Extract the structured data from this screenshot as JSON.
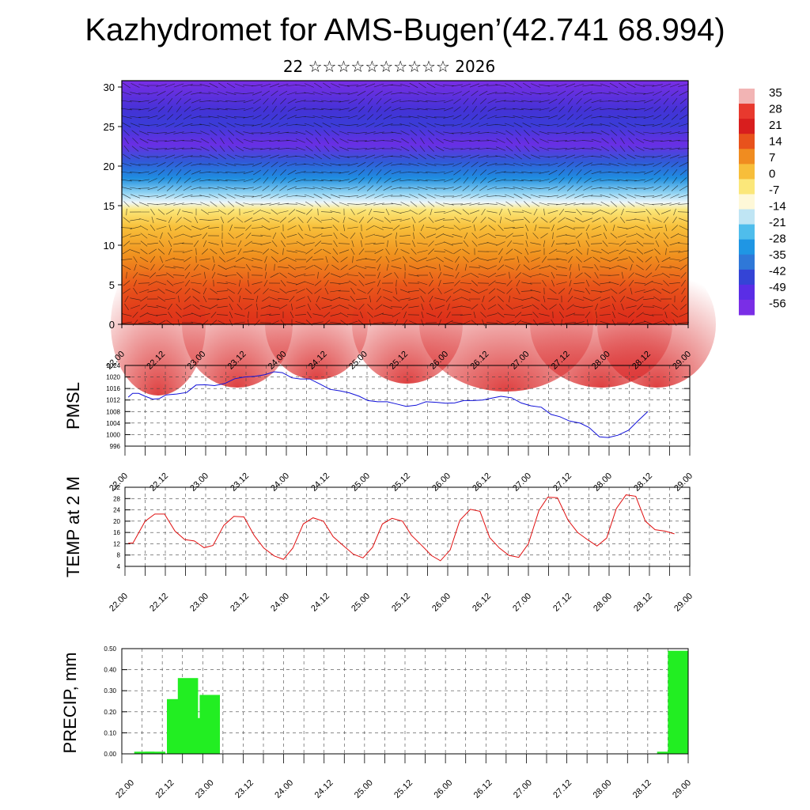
{
  "header": {
    "title": "Kazhydromet for AMS-Bugen’(42.741 68.994)",
    "subtitle": "22 ☆☆☆☆☆☆☆☆☆☆ 2026"
  },
  "colorbar": {
    "labels": [
      "35",
      "28",
      "21",
      "14",
      "7",
      "0",
      "-7",
      "-14",
      "-21",
      "-28",
      "-35",
      "-42",
      "-49",
      "-56"
    ],
    "colors": [
      "#f2b4b4",
      "#e8392e",
      "#d81e1e",
      "#e8521c",
      "#f08c20",
      "#f7be3a",
      "#fbe77a",
      "#fef8d8",
      "#bfe5f4",
      "#4fbdec",
      "#1f96e4",
      "#2f78d8",
      "#3444d6",
      "#5a2de6",
      "#7a2ee6"
    ]
  },
  "chart_data": [
    {
      "type": "heatmap",
      "name": "vertical-section",
      "title": "",
      "ylabel": "",
      "ylim": [
        0,
        30
      ],
      "yticks": [
        "0",
        "5",
        "10",
        "15",
        "20",
        "25",
        "30"
      ],
      "xticks": [
        "22.00",
        "22.12",
        "23.00",
        "23.12",
        "24.00",
        "24.12",
        "25.00",
        "25.12",
        "26.00",
        "26.12",
        "27.00",
        "27.12",
        "28.00",
        "28.12",
        "29.00"
      ]
    },
    {
      "type": "line",
      "name": "pmsl",
      "ylabel": "PMSL",
      "ylim": [
        996,
        1024
      ],
      "yticks": [
        "996",
        "1000",
        "1004",
        "1008",
        "1012",
        "1016",
        "1020",
        "1024"
      ],
      "xticks": [
        "22.00",
        "22.12",
        "23.00",
        "23.12",
        "24.00",
        "24.12",
        "25.00",
        "25.12",
        "26.00",
        "26.12",
        "27.00",
        "27.12",
        "28.00",
        "28.12",
        "29.00"
      ],
      "color": "#1010d8",
      "values": [
        1013,
        1014.3,
        1014.3,
        1013.3,
        1012.3,
        1012.5,
        1013.8,
        1014.1,
        1014.6,
        1017.2,
        1017.3,
        1017,
        1017.7,
        1019.4,
        1020,
        1020.2,
        1020.8,
        1021.8,
        1021.5,
        1019.7,
        1019.3,
        1019.3,
        1017.5,
        1015.7,
        1015.2,
        1014.5,
        1013.3,
        1011.8,
        1011.4,
        1011.4,
        1010.6,
        1009.8,
        1010.2,
        1011.4,
        1011.2,
        1010.9,
        1011,
        1011.8,
        1011.8,
        1012,
        1012.7,
        1013.3,
        1012.8,
        1011,
        1010,
        1009.5,
        1007,
        1006.2,
        1004.7,
        1004,
        1002.5,
        999.2,
        999,
        999.8,
        1001.5,
        1004.8,
        1008
      ],
      "x": [
        0.08,
        0.19,
        0.34,
        0.5,
        0.69,
        0.85,
        1.02,
        1.28,
        1.53,
        1.76,
        1.98,
        2.22,
        2.47,
        2.72,
        2.96,
        3.22,
        3.46,
        3.7,
        3.9,
        4.14,
        4.35,
        4.58,
        4.84,
        5.08,
        5.33,
        5.56,
        5.81,
        6.02,
        6.26,
        6.5,
        6.74,
        6.97,
        7.22,
        7.46,
        7.72,
        7.95,
        8.17,
        8.4,
        8.62,
        8.86,
        9.1,
        9.32,
        9.58,
        9.82,
        10.06,
        10.32,
        10.56,
        10.78,
        11.02,
        11.28,
        11.5,
        11.76,
        11.98,
        12.22,
        12.48,
        12.72,
        12.96
      ]
    },
    {
      "type": "line",
      "name": "temp-2m",
      "ylabel": "TEMP at 2 M",
      "ylim": [
        4,
        32
      ],
      "yticks": [
        "4",
        "8",
        "12",
        "16",
        "20",
        "24",
        "28",
        "32"
      ],
      "xticks": [
        "22.00",
        "22.12",
        "23.00",
        "23.12",
        "24.00",
        "24.12",
        "25.00",
        "25.12",
        "26.00",
        "26.12",
        "27.00",
        "27.12",
        "28.00",
        "28.12",
        "29.00"
      ],
      "color": "#e01010",
      "values": [
        12.2,
        12.3,
        20,
        22.5,
        22.5,
        16.5,
        13.5,
        13,
        10.6,
        11.4,
        18.5,
        21.7,
        21.5,
        15,
        10.5,
        7.7,
        6.5,
        10.5,
        19,
        21.2,
        20,
        14.5,
        11.5,
        8.3,
        7,
        10.8,
        19,
        21,
        20,
        15,
        11.5,
        7.8,
        6,
        9.8,
        20.3,
        24.2,
        23.5,
        14.2,
        10.5,
        7.9,
        7.2,
        12,
        23.8,
        28.5,
        28.3,
        20.4,
        16,
        13.5,
        11.2,
        14,
        24.5,
        29.3,
        28.8,
        20,
        17,
        16.5,
        15.5
      ],
      "x": [
        0.08,
        0.2,
        0.5,
        0.74,
        0.98,
        1.24,
        1.48,
        1.72,
        1.96,
        2.18,
        2.45,
        2.7,
        2.95,
        3.2,
        3.44,
        3.7,
        3.93,
        4.16,
        4.42,
        4.66,
        4.92,
        5.16,
        5.4,
        5.66,
        5.9,
        6.14,
        6.38,
        6.62,
        6.88,
        7.1,
        7.35,
        7.6,
        7.82,
        8.06,
        8.3,
        8.56,
        8.8,
        9.04,
        9.28,
        9.52,
        9.76,
        10,
        10.26,
        10.48,
        10.72,
        10.98,
        11.22,
        11.46,
        11.7,
        11.94,
        12.18,
        12.42,
        12.66,
        12.9,
        13.14,
        13.38,
        13.62
      ]
    },
    {
      "type": "bar",
      "name": "precip",
      "ylabel": "PRECIP, mm",
      "ylim": [
        0,
        0.5
      ],
      "yticks": [
        "0.00",
        "0.10",
        "0.20",
        "0.30",
        "0.40",
        "0.50"
      ],
      "xticks": [
        "22.00",
        "22.12",
        "23.00",
        "23.12",
        "24.00",
        "24.12",
        "25.00",
        "25.12",
        "26.00",
        "26.12",
        "27.00",
        "27.12",
        "28.00",
        "28.12",
        "29.00"
      ],
      "color": "#22ee22",
      "values": [
        0.01,
        0.01,
        0.26,
        0.36,
        0.17,
        0.28,
        0.01,
        0.49
      ],
      "x": [
        0.75,
        1.0,
        1.5,
        1.75,
        2.0,
        2.25,
        12.75,
        13.0
      ]
    }
  ]
}
